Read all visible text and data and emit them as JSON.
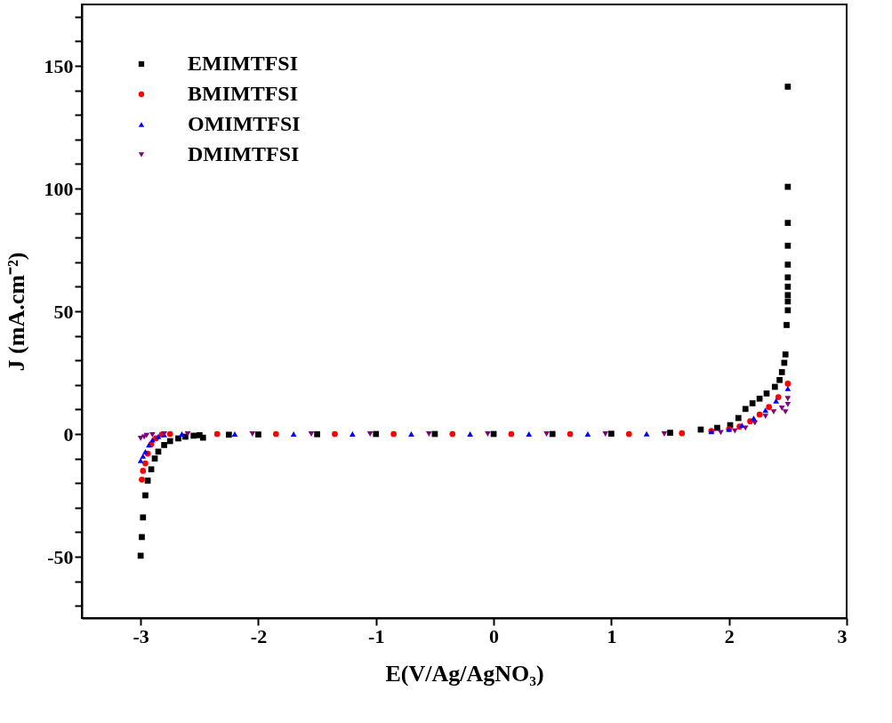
{
  "chart_data": {
    "type": "scatter",
    "xlabel": "E(V/Ag/AgNO₃)",
    "ylabel": "J (mA.cm⁻²)",
    "xlim": [
      -3.5,
      3
    ],
    "xticks": [
      -3,
      -2,
      -1,
      0,
      1,
      2,
      3
    ],
    "ylim": [
      -75,
      175
    ],
    "yticks": [
      {
        "value": -70,
        "label": null
      },
      {
        "value": -60,
        "label": null
      },
      -50,
      {
        "value": -40,
        "label": null
      },
      {
        "value": -30,
        "label": null
      },
      {
        "value": -20,
        "label": null
      },
      {
        "value": -10,
        "label": null
      },
      0,
      {
        "value": 10,
        "label": null
      },
      {
        "value": 20,
        "label": null
      },
      {
        "value": 30,
        "label": null
      },
      {
        "value": 40,
        "label": null
      },
      50,
      {
        "value": 60,
        "label": null
      },
      {
        "value": 70,
        "label": null
      },
      {
        "value": 80,
        "label": null
      },
      {
        "value": 90,
        "label": null
      },
      100,
      {
        "value": 110,
        "label": null
      },
      {
        "value": 120,
        "label": null
      },
      {
        "value": 130,
        "label": null
      },
      {
        "value": 140,
        "label": null
      },
      150,
      {
        "value": 160,
        "label": null
      },
      {
        "value": 170,
        "label": null
      }
    ],
    "grid": false,
    "legend": "top left",
    "series": [
      {
        "name": "EMIMTFSI",
        "color": "#000000",
        "marker": "square",
        "x": [
          -3.0,
          -2.99,
          -2.98,
          -2.96,
          -2.94,
          -2.91,
          -2.88,
          -2.85,
          -2.8,
          -2.75,
          -2.68,
          -2.62,
          -2.55,
          -2.5,
          -2.47,
          -2.25,
          -2.0,
          -1.5,
          -1.0,
          -0.5,
          0.0,
          0.5,
          1.0,
          1.5,
          1.76,
          1.9,
          2.01,
          2.08,
          2.14,
          2.2,
          2.26,
          2.32,
          2.39,
          2.43,
          2.45,
          2.47,
          2.48,
          2.49,
          2.5,
          2.5,
          2.5,
          2.5,
          2.5,
          2.5,
          2.5,
          2.5,
          2.5,
          2.5
        ],
        "values": [
          -49.6,
          -42,
          -34,
          -25,
          -19,
          -14.4,
          -10,
          -7.2,
          -4.5,
          -2.9,
          -1.8,
          -1.1,
          -0.7,
          -0.5,
          -1.5,
          -0.3,
          -0.2,
          -0.1,
          0,
          0,
          0,
          0,
          0.1,
          0.5,
          1.8,
          2.5,
          3.6,
          6.5,
          10.2,
          12.5,
          14.4,
          16.5,
          19.2,
          22,
          25.2,
          29,
          32.4,
          44.4,
          50.4,
          54,
          56.6,
          60,
          63.8,
          69,
          76.7,
          86,
          100.7,
          141.5
        ]
      },
      {
        "name": "BMIMTFSI",
        "color": "#ff0000",
        "marker": "circle",
        "x": [
          -2.99,
          -2.98,
          -2.96,
          -2.94,
          -2.91,
          -2.87,
          -2.82,
          -2.75,
          -2.35,
          -1.85,
          -1.35,
          -0.85,
          -0.35,
          0.15,
          0.65,
          1.15,
          1.6,
          1.85,
          2.0,
          2.09,
          2.18,
          2.26,
          2.34,
          2.42,
          2.5
        ],
        "values": [
          -18.6,
          -15,
          -12,
          -8,
          -4.2,
          -1.8,
          -0.2,
          0,
          0,
          0,
          0,
          0,
          0,
          0,
          0,
          0,
          0.3,
          1.2,
          2,
          3,
          5.2,
          7.9,
          11,
          15,
          20.5
        ]
      },
      {
        "name": "OMIMTFSI",
        "color": "#0000ff",
        "marker": "triangle",
        "x": [
          -3.0,
          -2.98,
          -2.96,
          -2.93,
          -2.9,
          -2.85,
          -2.8,
          -2.65,
          -2.2,
          -1.7,
          -1.2,
          -0.7,
          -0.2,
          0.3,
          0.8,
          1.3,
          1.85,
          2.0,
          2.11,
          2.21,
          2.31,
          2.4,
          2.5
        ],
        "values": [
          -10.8,
          -9,
          -7.2,
          -4.5,
          -2.4,
          -1,
          -0.3,
          0,
          0,
          0,
          0,
          0,
          0,
          0,
          0,
          0.1,
          1,
          2,
          3.6,
          6.5,
          9.7,
          13.5,
          18.5
        ]
      },
      {
        "name": "DMIMTFSI",
        "color": "#800080",
        "marker": "triangle-down",
        "x": [
          -3.0,
          -2.97,
          -2.95,
          -2.9,
          -2.8,
          -2.6,
          -2.05,
          -1.55,
          -1.05,
          -0.55,
          -0.05,
          0.45,
          0.95,
          1.45,
          1.93,
          2.05,
          2.14,
          2.22,
          2.31,
          2.38,
          2.45,
          2.48,
          2.5,
          2.5
        ],
        "values": [
          -1.8,
          -1.2,
          -0.6,
          -0.3,
          0,
          0,
          0,
          0,
          0,
          0,
          0,
          0,
          0,
          0,
          0.6,
          1.2,
          2.4,
          4.5,
          7.2,
          9,
          10.5,
          9,
          12,
          14.4
        ]
      }
    ]
  }
}
